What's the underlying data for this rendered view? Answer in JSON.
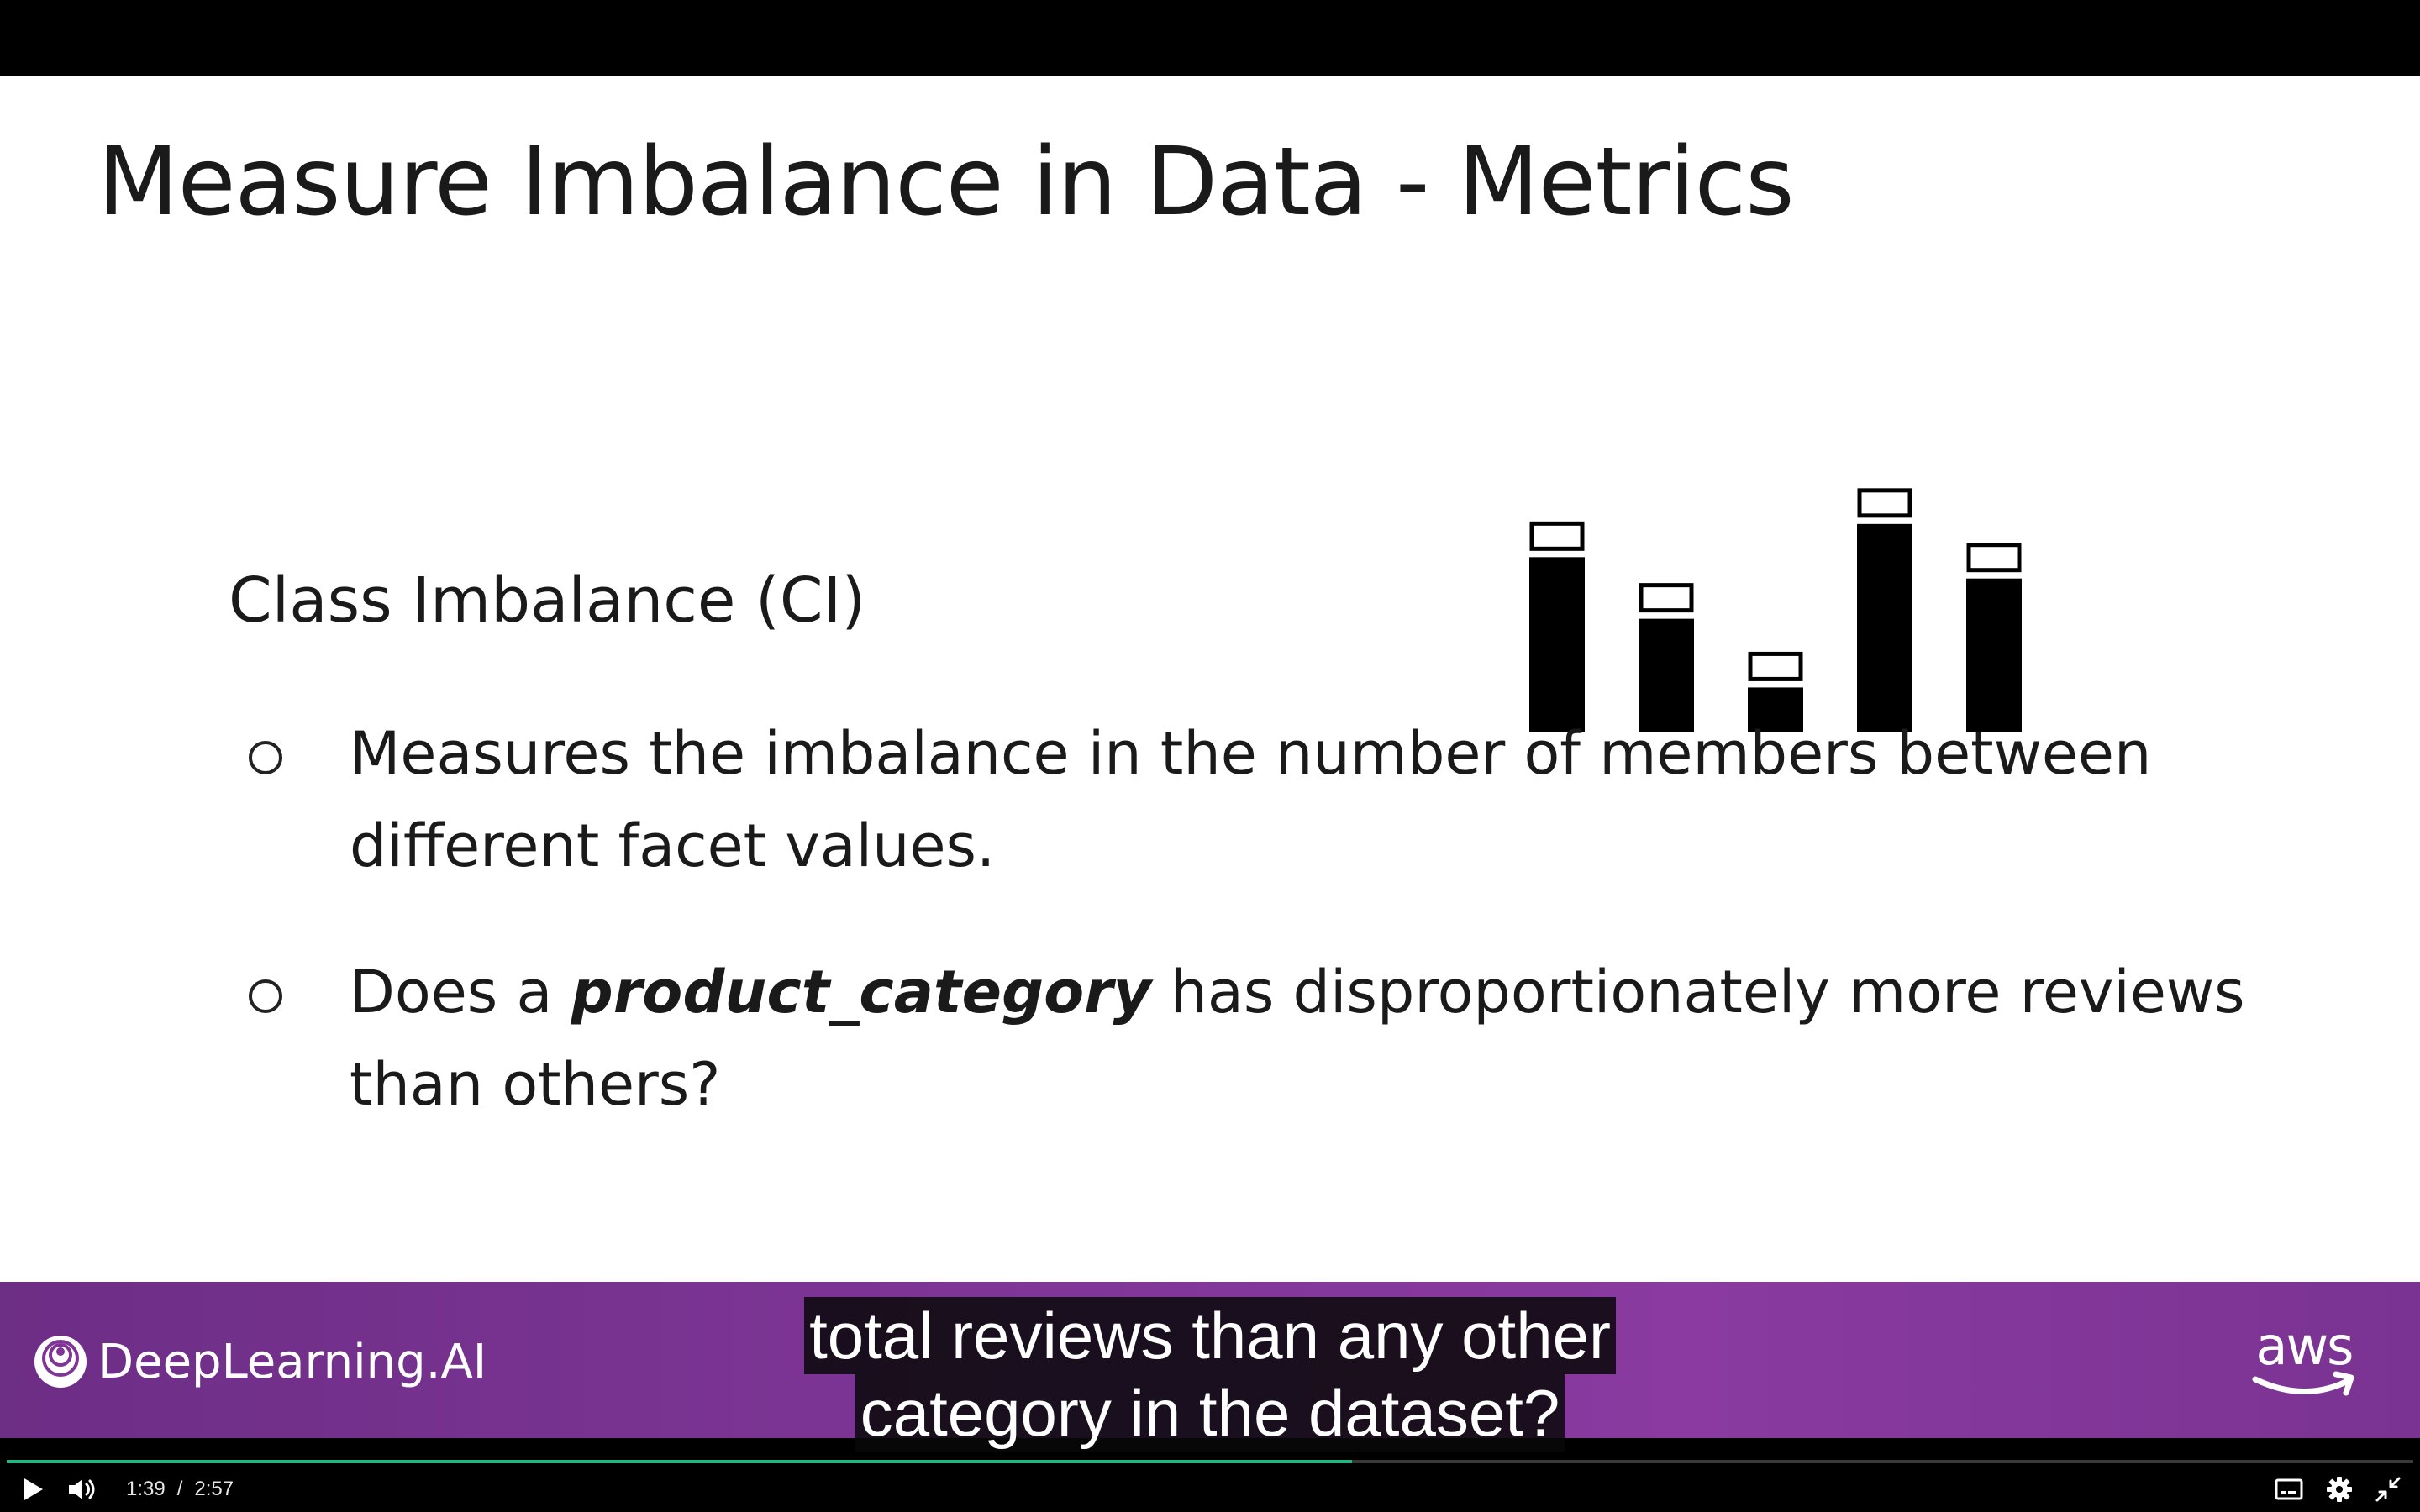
{
  "slide": {
    "title": "Measure Imbalance in Data - Metrics",
    "section_heading": "Class Imbalance (CI)",
    "bullets": [
      {
        "pre": "Measures the imbalance in the number of members between different facet values.",
        "emphasis": "",
        "post": ""
      },
      {
        "pre": "Does a ",
        "emphasis": "product_category",
        "post": " has disproportionately more reviews than others?"
      }
    ]
  },
  "chart_data": {
    "type": "bar",
    "categories": [
      "",
      "",
      "",
      "",
      ""
    ],
    "values": [
      0.74,
      0.48,
      0.19,
      0.88,
      0.65
    ],
    "ylim": [
      0,
      1
    ],
    "grid": false,
    "bar_color": "#000000"
  },
  "banner": {
    "brand": "DeepLearning.AI",
    "partner": "aws",
    "gradient_start": "#6d2e86",
    "gradient_end": "#8a3aa0"
  },
  "subtitles": {
    "lines": [
      "total reviews than any other",
      "category in the dataset?"
    ]
  },
  "player": {
    "current_time": "1:39",
    "separator": "/",
    "duration": "2:57",
    "progress_fraction": 0.559,
    "accent_color": "#1fb884",
    "icons": {
      "play": "play-icon",
      "volume": "volume-icon",
      "captions": "captions-icon",
      "settings": "gear-icon",
      "fullscreen": "exit-fullscreen-icon"
    }
  }
}
